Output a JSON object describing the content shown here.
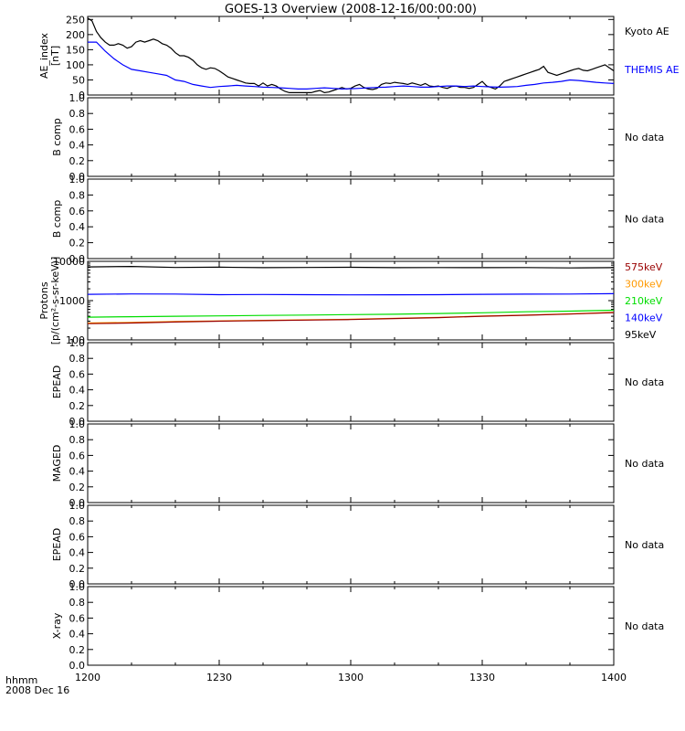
{
  "title": "GOES-13 Overview (2008-12-16/00:00:00)",
  "time_axis": {
    "corner_label_1": "hhmm",
    "corner_label_2": "2008 Dec 16",
    "ticks": [
      "1200",
      "1230",
      "1300",
      "1330",
      "1400"
    ],
    "range_minutes": [
      0,
      120
    ]
  },
  "colors": {
    "black": "#000000",
    "blue": "#0000ff",
    "green": "#00dd00",
    "orange": "#ff9900",
    "darkred": "#990000"
  },
  "chart_data": [
    {
      "type": "line",
      "panel": "ae",
      "ylabel_lines": [
        "AE_index",
        "[nT]"
      ],
      "ylim": [
        0,
        260
      ],
      "yticks": [
        "0",
        "50",
        "100",
        "150",
        "200",
        "250"
      ],
      "ytick_values": [
        0,
        50,
        100,
        150,
        200,
        250
      ],
      "x_units": "minutes after 12:00",
      "series": [
        {
          "name": "Kyoto AE",
          "color": "#000000",
          "x": [
            0,
            1,
            2,
            3,
            4,
            5,
            6,
            7,
            8,
            9,
            10,
            11,
            12,
            13,
            14,
            15,
            16,
            17,
            18,
            19,
            20,
            21,
            22,
            23,
            24,
            25,
            26,
            27,
            28,
            29,
            30,
            31,
            32,
            33,
            34,
            35,
            36,
            37,
            38,
            39,
            40,
            41,
            42,
            43,
            44,
            45,
            46,
            47,
            48,
            49,
            50,
            51,
            52,
            53,
            54,
            55,
            56,
            57,
            58,
            59,
            60,
            61,
            62,
            63,
            64,
            65,
            66,
            67,
            68,
            69,
            70,
            71,
            72,
            73,
            74,
            75,
            76,
            77,
            78,
            79,
            80,
            81,
            82,
            83,
            84,
            85,
            86,
            87,
            88,
            89,
            90,
            91,
            92,
            93,
            94,
            95,
            96,
            97,
            98,
            99,
            100,
            101,
            102,
            103,
            104,
            105,
            106,
            107,
            108,
            109,
            110,
            111,
            112,
            113,
            114,
            115,
            116,
            117,
            118,
            119,
            120
          ],
          "values": [
            255,
            245,
            210,
            190,
            175,
            165,
            165,
            170,
            165,
            155,
            160,
            175,
            180,
            175,
            180,
            185,
            180,
            170,
            165,
            155,
            140,
            130,
            130,
            125,
            115,
            100,
            90,
            85,
            90,
            88,
            80,
            70,
            60,
            55,
            50,
            45,
            40,
            38,
            38,
            30,
            40,
            30,
            35,
            30,
            20,
            12,
            8,
            8,
            8,
            8,
            8,
            8,
            12,
            15,
            8,
            10,
            15,
            20,
            25,
            20,
            22,
            30,
            35,
            25,
            20,
            18,
            22,
            35,
            40,
            38,
            42,
            40,
            38,
            35,
            40,
            36,
            32,
            38,
            30,
            28,
            30,
            25,
            22,
            28,
            30,
            25,
            25,
            22,
            25,
            35,
            45,
            30,
            25,
            20,
            30,
            45,
            50,
            55,
            60,
            65,
            70,
            75,
            80,
            85,
            95,
            75,
            70,
            65,
            70,
            75,
            80,
            85,
            88,
            82,
            80,
            85,
            90,
            95,
            100,
            90,
            80
          ]
        },
        {
          "name": "THEMIS AE",
          "color": "#0000ff",
          "x": [
            0,
            2,
            4,
            6,
            8,
            10,
            12,
            14,
            16,
            18,
            20,
            22,
            24,
            26,
            28,
            30,
            32,
            34,
            36,
            38,
            40,
            42,
            44,
            46,
            48,
            50,
            52,
            54,
            56,
            58,
            60,
            62,
            64,
            66,
            68,
            70,
            72,
            74,
            76,
            78,
            80,
            82,
            84,
            86,
            88,
            90,
            92,
            94,
            96,
            98,
            100,
            102,
            104,
            106,
            108,
            110,
            112,
            114,
            116,
            118,
            120
          ],
          "values": [
            175,
            175,
            145,
            120,
            100,
            85,
            80,
            75,
            70,
            65,
            50,
            45,
            35,
            30,
            25,
            28,
            30,
            32,
            30,
            28,
            26,
            25,
            24,
            22,
            20,
            20,
            22,
            24,
            22,
            20,
            21,
            22,
            24,
            25,
            26,
            28,
            30,
            28,
            26,
            26,
            28,
            30,
            30,
            28,
            30,
            28,
            27,
            26,
            27,
            28,
            32,
            35,
            40,
            42,
            45,
            50,
            48,
            45,
            42,
            40,
            38
          ]
        }
      ],
      "side_labels": [
        {
          "text": "Kyoto AE",
          "color": "#000000"
        },
        {
          "text": "THEMIS AE",
          "color": "#0000ff"
        }
      ]
    },
    {
      "type": "line",
      "panel": "mag1",
      "ylabel_lines": [
        "B comp"
      ],
      "ylim": [
        0,
        1
      ],
      "yticks": [
        "0.0",
        "0.2",
        "0.4",
        "0.6",
        "0.8",
        "1.0"
      ],
      "ytick_values": [
        0,
        0.2,
        0.4,
        0.6,
        0.8,
        1.0
      ],
      "series": [],
      "status": "No data"
    },
    {
      "type": "line",
      "panel": "mag2",
      "ylabel_lines": [
        "B comp"
      ],
      "ylim": [
        0,
        1
      ],
      "yticks": [
        "0.0",
        "0.2",
        "0.4",
        "0.6",
        "0.8",
        "1.0"
      ],
      "ytick_values": [
        0,
        0.2,
        0.4,
        0.6,
        0.8,
        1.0
      ],
      "series": [],
      "status": "No data"
    },
    {
      "type": "line",
      "panel": "protons",
      "log_scale": true,
      "ylabel_lines": [
        "Protons",
        "[p/(cm²-s-sr-keV)]"
      ],
      "ylim": [
        100,
        10000
      ],
      "yticks": [
        "100",
        "1000",
        "10000"
      ],
      "ytick_values": [
        100,
        1000,
        10000
      ],
      "x_units": "minutes after 12:00",
      "series": [
        {
          "name": "95keV",
          "color": "#000000",
          "x": [
            0,
            10,
            20,
            30,
            40,
            50,
            60,
            70,
            80,
            90,
            100,
            110,
            120
          ],
          "values": [
            7200,
            7400,
            7000,
            7100,
            6900,
            7000,
            7050,
            6900,
            6950,
            6900,
            6950,
            6800,
            6900
          ]
        },
        {
          "name": "140keV",
          "color": "#0000ff",
          "x": [
            0,
            10,
            20,
            30,
            40,
            50,
            60,
            70,
            80,
            90,
            100,
            110,
            120
          ],
          "values": [
            1450,
            1480,
            1470,
            1420,
            1430,
            1420,
            1400,
            1410,
            1420,
            1450,
            1460,
            1470,
            1500
          ]
        },
        {
          "name": "210keV",
          "color": "#00dd00",
          "x": [
            0,
            10,
            20,
            30,
            40,
            50,
            60,
            70,
            80,
            90,
            100,
            110,
            120
          ],
          "values": [
            380,
            390,
            400,
            410,
            420,
            430,
            440,
            450,
            470,
            490,
            520,
            540,
            570
          ]
        },
        {
          "name": "300keV",
          "color": "#ff9900",
          "x": [
            0,
            10,
            20,
            30,
            40,
            50,
            60,
            70,
            80,
            90,
            100,
            110,
            120
          ],
          "values": [
            270,
            280,
            295,
            305,
            315,
            325,
            335,
            355,
            375,
            405,
            430,
            460,
            500
          ]
        },
        {
          "name": "575keV",
          "color": "#990000",
          "x": [
            0,
            10,
            20,
            30,
            40,
            50,
            60,
            70,
            80,
            90,
            100,
            110,
            120
          ],
          "values": [
            260,
            270,
            285,
            300,
            310,
            320,
            330,
            350,
            370,
            400,
            425,
            455,
            495
          ]
        }
      ],
      "side_labels": [
        {
          "text": "575keV",
          "color": "#990000"
        },
        {
          "text": "300keV",
          "color": "#ff9900"
        },
        {
          "text": "210keV",
          "color": "#00dd00"
        },
        {
          "text": "140keV",
          "color": "#0000ff"
        },
        {
          "text": "95keV",
          "color": "#000000"
        }
      ]
    },
    {
      "type": "line",
      "panel": "epead1",
      "ylabel_lines": [
        "EPEAD"
      ],
      "ylim": [
        0,
        1
      ],
      "yticks": [
        "0.0",
        "0.2",
        "0.4",
        "0.6",
        "0.8",
        "1.0"
      ],
      "ytick_values": [
        0,
        0.2,
        0.4,
        0.6,
        0.8,
        1.0
      ],
      "series": [],
      "status": "No data"
    },
    {
      "type": "line",
      "panel": "maged",
      "ylabel_lines": [
        "MAGED"
      ],
      "ylim": [
        0,
        1
      ],
      "yticks": [
        "0.0",
        "0.2",
        "0.4",
        "0.6",
        "0.8",
        "1.0"
      ],
      "ytick_values": [
        0,
        0.2,
        0.4,
        0.6,
        0.8,
        1.0
      ],
      "series": [],
      "status": "No data"
    },
    {
      "type": "line",
      "panel": "epead2",
      "ylabel_lines": [
        "EPEAD"
      ],
      "ylim": [
        0,
        1
      ],
      "yticks": [
        "0.0",
        "0.2",
        "0.4",
        "0.6",
        "0.8",
        "1.0"
      ],
      "ytick_values": [
        0,
        0.2,
        0.4,
        0.6,
        0.8,
        1.0
      ],
      "series": [],
      "status": "No data"
    },
    {
      "type": "line",
      "panel": "xray",
      "ylabel_lines": [
        "X-ray"
      ],
      "ylim": [
        0,
        1
      ],
      "yticks": [
        "0.0",
        "0.2",
        "0.4",
        "0.6",
        "0.8",
        "1.0"
      ],
      "ytick_values": [
        0,
        0.2,
        0.4,
        0.6,
        0.8,
        1.0
      ],
      "series": [],
      "status": "No data"
    }
  ]
}
